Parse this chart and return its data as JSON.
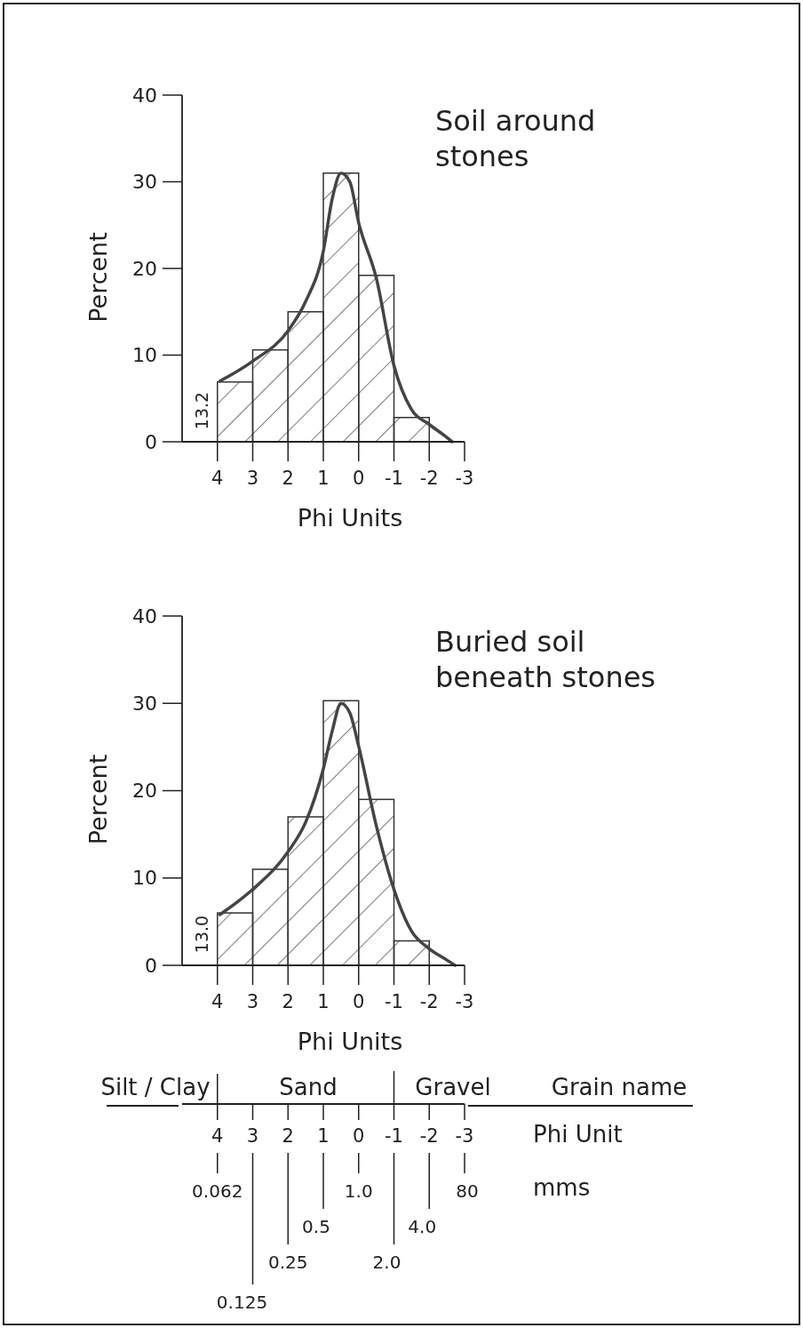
{
  "chart_data": [
    {
      "type": "histogram",
      "title": "Soil around stones",
      "xlabel": "Phi Units",
      "ylabel": "Percent",
      "xlim": [
        5,
        -3
      ],
      "xticks": [
        4,
        3,
        2,
        1,
        0,
        -1,
        -2,
        -3
      ],
      "ylim": [
        0,
        40
      ],
      "yticks": [
        0,
        10,
        20,
        30,
        40
      ],
      "annotations": [
        "13.2"
      ],
      "series": [
        {
          "type": "histogram",
          "color": "#333333",
          "bins": [
            4,
            3,
            2,
            1,
            0,
            -1,
            -2
          ],
          "values": [
            6.9,
            10.6,
            15,
            31,
            19.2,
            2.8
          ]
        },
        {
          "type": "line",
          "color": "#444444",
          "x": [
            3.93,
            3,
            2,
            1.5,
            1,
            0.75,
            0.5,
            0.25,
            0,
            -0.5,
            -1,
            -1.5,
            -2,
            -2.5,
            -2.65
          ],
          "values": [
            7,
            9.3,
            12.8,
            16.2,
            22,
            28,
            31,
            30,
            25.3,
            18.9,
            8.8,
            3.7,
            2,
            0.5,
            0
          ]
        }
      ]
    },
    {
      "type": "histogram",
      "title": "Buried soil beneath stones",
      "xlabel": "Phi Units",
      "ylabel": "Percent",
      "xlim": [
        5,
        -3
      ],
      "xticks": [
        4,
        3,
        2,
        1,
        0,
        -1,
        -2,
        -3
      ],
      "ylim": [
        0,
        40
      ],
      "yticks": [
        0,
        10,
        20,
        30,
        40
      ],
      "x2lim": [
        5,
        -3
      ],
      "x2ticks": [
        4,
        3,
        2,
        1,
        0,
        -1,
        -2,
        -3
      ],
      "x2label": "Phi Unit",
      "annotations": [
        "13.0",
        "Silt / Clay",
        "Sand",
        "Gravel",
        "Grain name",
        "mms",
        "0.062",
        "0.125",
        "0.25",
        "0.5",
        "1.0",
        "2.0",
        "4.0",
        "80"
      ],
      "series": [
        {
          "type": "histogram",
          "color": "#333333",
          "bins": [
            4,
            3,
            2,
            1,
            0,
            -1,
            -2
          ],
          "values": [
            6,
            11,
            17,
            30.3,
            19,
            2.8
          ]
        },
        {
          "type": "line",
          "color": "#444444",
          "x": [
            3.93,
            3,
            2,
            1.5,
            1,
            0.75,
            0.5,
            0.25,
            0,
            -0.5,
            -1,
            -1.5,
            -2,
            -2.5,
            -2.73
          ],
          "values": [
            5.8,
            8.7,
            13,
            16.4,
            22.5,
            26.8,
            30,
            28.9,
            25.1,
            16,
            8.7,
            3.9,
            1.9,
            0.6,
            0
          ]
        }
      ]
    }
  ]
}
